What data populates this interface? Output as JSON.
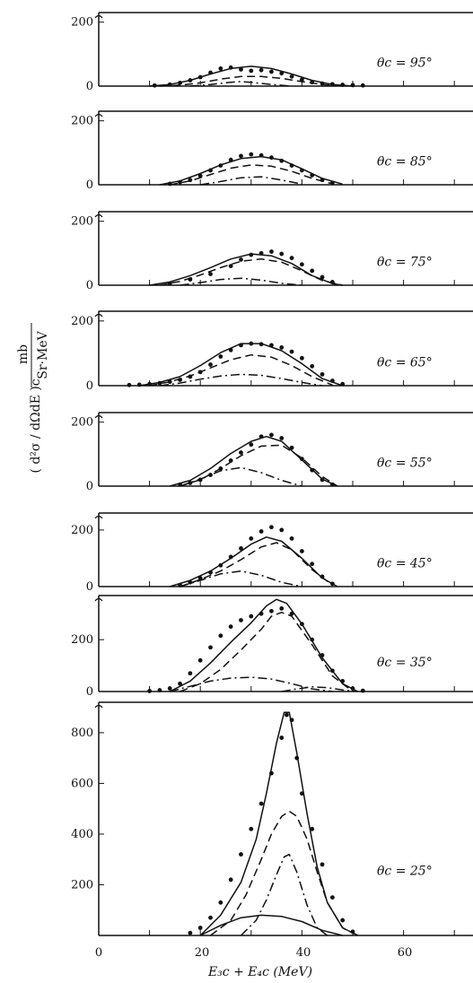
{
  "figure": {
    "xlabel": "E₃c + E₄c (MeV)",
    "ylabel_left": "( d²σ / dΩdE )c",
    "ylabel_units_num": "mb",
    "ylabel_units_den": "Sr·MeV",
    "x_tick_labels": [
      "0",
      "20",
      "40",
      "60"
    ]
  },
  "chart_data": [
    {
      "type": "line",
      "panel": "95",
      "angle_label": "θc = 95°",
      "xlim": [
        0,
        75
      ],
      "ylim": [
        0,
        230
      ],
      "y_tick_labels": [
        "0",
        "200"
      ],
      "points": {
        "x": [
          11,
          14,
          16,
          18,
          20,
          22,
          24,
          26,
          28,
          30,
          32,
          34,
          36,
          38,
          40,
          42,
          44,
          46,
          48,
          50,
          52
        ],
        "y": [
          2,
          5,
          10,
          18,
          28,
          42,
          55,
          58,
          52,
          48,
          50,
          45,
          40,
          30,
          20,
          12,
          8,
          6,
          4,
          3,
          2
        ]
      },
      "series": [
        {
          "name": "",
          "style": "solid",
          "x": [
            10,
            14,
            18,
            22,
            26,
            30,
            34,
            38,
            42,
            46,
            50
          ],
          "y": [
            0,
            5,
            18,
            38,
            55,
            62,
            55,
            38,
            18,
            5,
            0
          ]
        },
        {
          "name": "",
          "style": "dash",
          "x": [
            12,
            16,
            20,
            24,
            28,
            32,
            36,
            40,
            44,
            48
          ],
          "y": [
            0,
            3,
            10,
            22,
            30,
            30,
            24,
            14,
            5,
            0
          ]
        },
        {
          "name": "",
          "style": "dashdot",
          "x": [
            18,
            22,
            26,
            28,
            30,
            34,
            38
          ],
          "y": [
            0,
            5,
            12,
            14,
            12,
            5,
            0
          ]
        }
      ]
    },
    {
      "type": "line",
      "panel": "85",
      "angle_label": "θc = 85°",
      "xlim": [
        0,
        75
      ],
      "ylim": [
        0,
        230
      ],
      "y_tick_labels": [
        "0",
        "200"
      ],
      "points": {
        "x": [
          14,
          16,
          18,
          20,
          22,
          24,
          26,
          28,
          30,
          32,
          34,
          36,
          38,
          40,
          42,
          44,
          46
        ],
        "y": [
          3,
          8,
          15,
          28,
          45,
          60,
          78,
          90,
          95,
          92,
          85,
          75,
          60,
          45,
          30,
          15,
          6
        ]
      },
      "series": [
        {
          "name": "",
          "style": "solid",
          "x": [
            12,
            16,
            20,
            24,
            28,
            32,
            36,
            40,
            44,
            48
          ],
          "y": [
            0,
            12,
            35,
            62,
            82,
            88,
            78,
            50,
            20,
            2
          ]
        },
        {
          "name": "",
          "style": "dash",
          "x": [
            14,
            18,
            22,
            26,
            30,
            34,
            38,
            42,
            46
          ],
          "y": [
            0,
            12,
            32,
            52,
            62,
            58,
            42,
            20,
            3
          ]
        },
        {
          "name": "",
          "style": "dashdot",
          "x": [
            20,
            24,
            28,
            32,
            36,
            40
          ],
          "y": [
            0,
            10,
            22,
            25,
            15,
            2
          ]
        }
      ]
    },
    {
      "type": "line",
      "panel": "75",
      "angle_label": "θc = 75°",
      "xlim": [
        0,
        75
      ],
      "ylim": [
        0,
        230
      ],
      "y_tick_labels": [
        "0",
        "200"
      ],
      "points": {
        "x": [
          14,
          18,
          22,
          26,
          28,
          30,
          32,
          34,
          36,
          38,
          40,
          42,
          44,
          46
        ],
        "y": [
          5,
          18,
          35,
          60,
          80,
          95,
          100,
          105,
          98,
          85,
          65,
          45,
          25,
          10
        ]
      },
      "series": [
        {
          "name": "",
          "style": "solid",
          "x": [
            10,
            14,
            18,
            22,
            26,
            30,
            34,
            38,
            42,
            46,
            48
          ],
          "y": [
            0,
            10,
            30,
            55,
            82,
            98,
            92,
            68,
            30,
            5,
            0
          ]
        },
        {
          "name": "",
          "style": "dash",
          "x": [
            12,
            16,
            20,
            24,
            28,
            32,
            36,
            40,
            44,
            48
          ],
          "y": [
            0,
            12,
            32,
            55,
            75,
            82,
            72,
            45,
            15,
            0
          ]
        },
        {
          "name": "",
          "style": "dashdot",
          "x": [
            16,
            20,
            24,
            28,
            32,
            36,
            40
          ],
          "y": [
            0,
            8,
            18,
            22,
            16,
            6,
            0
          ]
        }
      ]
    },
    {
      "type": "line",
      "panel": "65",
      "angle_label": "θc = 65°",
      "xlim": [
        0,
        75
      ],
      "ylim": [
        0,
        230
      ],
      "y_tick_labels": [
        "0",
        "200"
      ],
      "points": {
        "x": [
          6,
          8,
          10,
          12,
          14,
          16,
          18,
          20,
          22,
          24,
          26,
          28,
          30,
          32,
          34,
          36,
          38,
          40,
          42,
          44,
          46,
          48
        ],
        "y": [
          2,
          3,
          5,
          8,
          12,
          18,
          28,
          42,
          65,
          90,
          110,
          125,
          130,
          128,
          125,
          118,
          105,
          85,
          60,
          35,
          15,
          5
        ]
      },
      "series": [
        {
          "name": "",
          "style": "solid",
          "x": [
            8,
            12,
            16,
            20,
            24,
            28,
            32,
            36,
            40,
            44,
            48
          ],
          "y": [
            0,
            10,
            28,
            62,
            102,
            130,
            130,
            108,
            68,
            22,
            0
          ]
        },
        {
          "name": "",
          "style": "dash",
          "x": [
            10,
            14,
            18,
            22,
            26,
            30,
            34,
            38,
            42,
            46
          ],
          "y": [
            0,
            12,
            30,
            55,
            80,
            95,
            88,
            62,
            28,
            2
          ]
        },
        {
          "name": "",
          "style": "dashdot",
          "x": [
            12,
            16,
            20,
            24,
            28,
            32,
            36,
            40,
            44
          ],
          "y": [
            0,
            8,
            20,
            30,
            35,
            32,
            22,
            10,
            0
          ]
        }
      ]
    },
    {
      "type": "line",
      "panel": "55",
      "angle_label": "θc = 55°",
      "xlim": [
        0,
        75
      ],
      "ylim": [
        0,
        230
      ],
      "y_tick_labels": [
        "0",
        "200"
      ],
      "points": {
        "x": [
          16,
          18,
          20,
          22,
          24,
          26,
          28,
          30,
          32,
          34,
          36,
          38,
          40,
          42,
          44,
          46
        ],
        "y": [
          5,
          10,
          20,
          35,
          55,
          80,
          105,
          130,
          155,
          160,
          150,
          120,
          85,
          50,
          20,
          5
        ]
      },
      "series": [
        {
          "name": "",
          "style": "solid",
          "x": [
            14,
            18,
            22,
            26,
            30,
            33,
            36,
            40,
            44,
            47
          ],
          "y": [
            0,
            18,
            55,
            102,
            140,
            155,
            140,
            82,
            22,
            0
          ]
        },
        {
          "name": "",
          "style": "dash",
          "x": [
            16,
            20,
            24,
            28,
            32,
            36,
            40,
            44,
            47
          ],
          "y": [
            0,
            20,
            55,
            95,
            125,
            128,
            88,
            30,
            0
          ]
        },
        {
          "name": "",
          "style": "dashdot",
          "x": [
            16,
            20,
            24,
            28,
            32,
            36,
            40
          ],
          "y": [
            0,
            22,
            48,
            58,
            42,
            18,
            0
          ]
        }
      ]
    },
    {
      "type": "line",
      "panel": "45",
      "angle_label": "θc = 45°",
      "xlim": [
        0,
        75
      ],
      "ylim": [
        0,
        260
      ],
      "y_tick_labels": [
        "0",
        "200"
      ],
      "points": {
        "x": [
          16,
          18,
          20,
          22,
          24,
          26,
          28,
          30,
          32,
          34,
          36,
          38,
          40,
          42,
          44,
          46
        ],
        "y": [
          5,
          15,
          30,
          50,
          75,
          105,
          135,
          170,
          195,
          210,
          200,
          170,
          125,
          80,
          35,
          10
        ]
      },
      "series": [
        {
          "name": "",
          "style": "solid",
          "x": [
            14,
            18,
            22,
            26,
            30,
            33,
            36,
            40,
            44,
            47
          ],
          "y": [
            0,
            22,
            55,
            100,
            150,
            175,
            160,
            100,
            30,
            0
          ]
        },
        {
          "name": "",
          "style": "dash",
          "x": [
            16,
            20,
            24,
            28,
            32,
            35,
            38,
            42,
            46
          ],
          "y": [
            0,
            25,
            55,
            95,
            140,
            155,
            130,
            60,
            5
          ]
        },
        {
          "name": "",
          "style": "dashdot",
          "x": [
            16,
            20,
            24,
            28,
            32,
            36,
            40
          ],
          "y": [
            0,
            22,
            45,
            55,
            40,
            15,
            0
          ]
        }
      ]
    },
    {
      "type": "line",
      "panel": "35",
      "angle_label": "θc = 35°",
      "xlim": [
        0,
        75
      ],
      "ylim": [
        0,
        370
      ],
      "y_tick_labels": [
        "0",
        "200"
      ],
      "points": {
        "x": [
          10,
          12,
          14,
          16,
          18,
          20,
          22,
          24,
          26,
          28,
          30,
          32,
          34,
          36,
          38,
          40,
          42,
          44,
          46,
          48,
          50,
          52
        ],
        "y": [
          2,
          5,
          12,
          30,
          70,
          120,
          170,
          215,
          250,
          275,
          290,
          300,
          310,
          320,
          300,
          260,
          200,
          140,
          80,
          40,
          12,
          3
        ]
      },
      "series": [
        {
          "name": "",
          "style": "solid",
          "x": [
            14,
            18,
            22,
            26,
            30,
            33,
            35,
            37,
            40,
            44,
            48,
            51
          ],
          "y": [
            0,
            40,
            110,
            190,
            265,
            330,
            355,
            340,
            260,
            130,
            30,
            0
          ]
        },
        {
          "name": "",
          "style": "dash",
          "x": [
            16,
            20,
            24,
            28,
            32,
            34,
            36,
            38,
            42,
            46,
            50
          ],
          "y": [
            0,
            30,
            85,
            160,
            240,
            290,
            305,
            290,
            180,
            60,
            0
          ]
        },
        {
          "name": "",
          "style": "dashdot",
          "x": [
            14,
            18,
            22,
            26,
            30,
            34,
            38,
            42,
            46
          ],
          "y": [
            0,
            20,
            40,
            52,
            55,
            48,
            30,
            10,
            0
          ]
        },
        {
          "name": "",
          "style": "dashdot",
          "x": [
            36,
            39,
            42,
            45,
            48,
            51
          ],
          "y": [
            0,
            10,
            18,
            15,
            6,
            0
          ]
        }
      ]
    },
    {
      "type": "line",
      "panel": "25",
      "angle_label": "θc = 25°",
      "xlim": [
        0,
        75
      ],
      "ylim": [
        0,
        920
      ],
      "y_tick_labels": [
        "200",
        "400",
        "600",
        "800"
      ],
      "points": {
        "x": [
          18,
          20,
          22,
          24,
          26,
          28,
          30,
          32,
          34,
          36,
          37,
          38,
          39,
          40,
          42,
          44,
          46,
          48,
          50
        ],
        "y": [
          10,
          30,
          70,
          130,
          220,
          320,
          420,
          520,
          640,
          780,
          870,
          850,
          700,
          560,
          420,
          280,
          150,
          60,
          15
        ]
      },
      "series": [
        {
          "name": "",
          "style": "solid",
          "x": [
            20,
            24,
            28,
            31,
            33,
            35,
            36.5,
            37.5,
            39,
            41,
            43,
            45,
            48,
            51
          ],
          "y": [
            0,
            80,
            210,
            380,
            560,
            760,
            880,
            880,
            720,
            480,
            270,
            130,
            30,
            0
          ]
        },
        {
          "name": "",
          "style": "dash",
          "x": [
            22,
            26,
            29,
            32,
            34,
            36,
            37.5,
            39,
            41,
            43,
            45,
            48,
            51
          ],
          "y": [
            0,
            60,
            160,
            300,
            400,
            470,
            490,
            470,
            380,
            250,
            130,
            30,
            0
          ]
        },
        {
          "name": "",
          "style": "dashdot",
          "x": [
            28,
            31,
            33,
            35,
            36.5,
            37.5,
            39,
            41,
            43,
            45
          ],
          "y": [
            0,
            60,
            140,
            240,
            310,
            320,
            250,
            120,
            30,
            0
          ]
        },
        {
          "name": "",
          "style": "solid",
          "x": [
            20,
            24,
            28,
            32,
            36,
            40,
            44,
            48
          ],
          "y": [
            0,
            40,
            70,
            80,
            75,
            55,
            20,
            0
          ]
        }
      ]
    }
  ]
}
